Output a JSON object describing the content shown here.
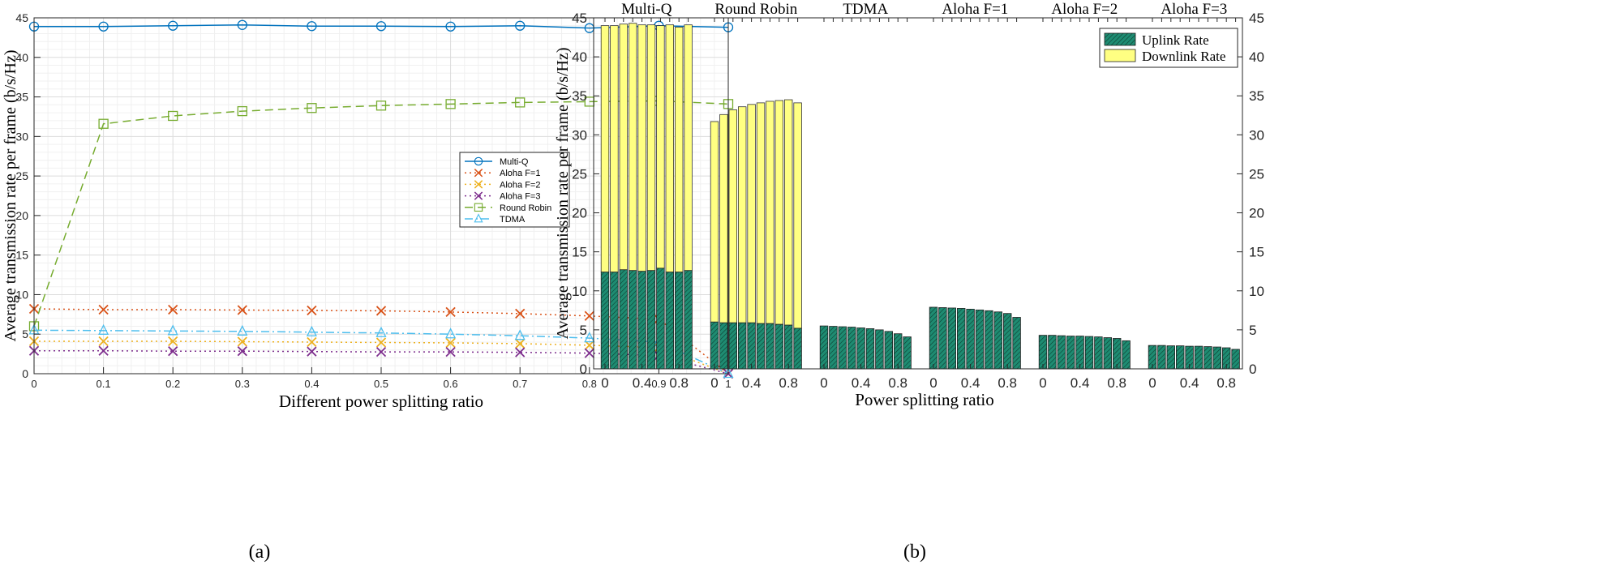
{
  "chart_data": [
    {
      "panel": "(a)",
      "type": "line",
      "title": "",
      "xlabel": "Different power splitting ratio",
      "ylabel": "Average transmission rate per frame (b/s/Hz)",
      "xlim": [
        0,
        1
      ],
      "ylim": [
        0,
        45
      ],
      "grid": true,
      "legend_position": "center-right",
      "x": [
        0,
        0.1,
        0.2,
        0.3,
        0.4,
        0.5,
        0.6,
        0.7,
        0.8,
        0.9,
        1
      ],
      "xtick_labels": [
        "0",
        "0.1",
        "0.2",
        "0.3",
        "0.4",
        "0.5",
        "0.6",
        "0.7",
        "0.8",
        "0.9",
        "1"
      ],
      "ytick_labels": [
        "0",
        "5",
        "10",
        "15",
        "20",
        "25",
        "30",
        "35",
        "40",
        "45"
      ],
      "series": [
        {
          "name": "Multi-Q",
          "color": "#0072BD",
          "marker": "circle",
          "dash": "solid",
          "values": [
            43.9,
            43.9,
            44.0,
            44.1,
            43.95,
            43.95,
            43.9,
            44.0,
            43.7,
            44.0,
            43.8
          ]
        },
        {
          "name": "Aloha F=1",
          "color": "#D95319",
          "marker": "x",
          "dash": "dot",
          "values": [
            8.2,
            8.1,
            8.1,
            8.05,
            8.0,
            7.95,
            7.8,
            7.6,
            7.3,
            6.9,
            0
          ]
        },
        {
          "name": "Aloha F=2",
          "color": "#EDB120",
          "marker": "x",
          "dash": "dot",
          "values": [
            4.1,
            4.1,
            4.1,
            4.05,
            4.0,
            3.95,
            3.9,
            3.8,
            3.6,
            3.3,
            0
          ]
        },
        {
          "name": "Aloha F=3",
          "color": "#7E2F8E",
          "marker": "x",
          "dash": "dot",
          "values": [
            2.9,
            2.9,
            2.85,
            2.85,
            2.8,
            2.75,
            2.75,
            2.7,
            2.6,
            2.3,
            0
          ]
        },
        {
          "name": "Round Robin",
          "color": "#77AC30",
          "marker": "square",
          "dash": "dash",
          "values": [
            6.0,
            31.6,
            32.6,
            33.2,
            33.6,
            33.9,
            34.1,
            34.3,
            34.4,
            34.5,
            34.1
          ]
        },
        {
          "name": "TDMA",
          "color": "#4DBEEE",
          "marker": "triangle",
          "dash": "dashdot",
          "values": [
            5.5,
            5.45,
            5.4,
            5.35,
            5.25,
            5.15,
            5.0,
            4.8,
            4.5,
            4.0,
            0
          ]
        }
      ]
    },
    {
      "panel": "(b)",
      "type": "bar",
      "stacked": true,
      "xlabel": "Power splitting ratio",
      "ylabel": "Average transmission rate per frame (b/s/Hz)",
      "ylim": [
        0,
        45
      ],
      "legend_position": "top-right",
      "ytick_labels": [
        "0",
        "5",
        "10",
        "15",
        "20",
        "25",
        "30",
        "35",
        "40",
        "45"
      ],
      "xtick_labels": [
        "0",
        "0.4",
        "0.8"
      ],
      "ratios": [
        0,
        0.1,
        0.2,
        0.3,
        0.4,
        0.5,
        0.6,
        0.7,
        0.8,
        0.9
      ],
      "legend": [
        {
          "name": "Uplink Rate",
          "color": "#1E8C72",
          "hatched": true
        },
        {
          "name": "Downlink Rate",
          "color": "#FFFF82",
          "hatched": false
        }
      ],
      "groups": [
        {
          "name": "Multi-Q",
          "uplink": [
            12.4,
            12.4,
            12.7,
            12.6,
            12.5,
            12.6,
            12.9,
            12.4,
            12.4,
            12.6
          ],
          "total": [
            44.0,
            44.0,
            44.2,
            44.3,
            44.1,
            44.1,
            44.0,
            44.1,
            43.8,
            44.1
          ]
        },
        {
          "name": "Round Robin",
          "uplink": [
            6.0,
            5.9,
            5.9,
            5.9,
            5.9,
            5.8,
            5.8,
            5.7,
            5.6,
            5.2
          ],
          "total": [
            31.7,
            32.6,
            33.2,
            33.6,
            33.9,
            34.1,
            34.3,
            34.4,
            34.5,
            34.1
          ]
        },
        {
          "name": "TDMA",
          "uplink": [
            5.5,
            5.45,
            5.4,
            5.35,
            5.25,
            5.15,
            5.0,
            4.8,
            4.5,
            4.1
          ],
          "total": [
            5.5,
            5.45,
            5.4,
            5.35,
            5.25,
            5.15,
            5.0,
            4.8,
            4.5,
            4.1
          ]
        },
        {
          "name": "Aloha F=1",
          "uplink": [
            7.9,
            7.85,
            7.8,
            7.75,
            7.65,
            7.55,
            7.45,
            7.3,
            7.1,
            6.6
          ],
          "total": [
            7.9,
            7.85,
            7.8,
            7.75,
            7.65,
            7.55,
            7.45,
            7.3,
            7.1,
            6.6
          ]
        },
        {
          "name": "Aloha F=2",
          "uplink": [
            4.3,
            4.3,
            4.25,
            4.2,
            4.2,
            4.15,
            4.1,
            4.0,
            3.9,
            3.6
          ],
          "total": [
            4.3,
            4.3,
            4.25,
            4.2,
            4.2,
            4.15,
            4.1,
            4.0,
            3.9,
            3.6
          ]
        },
        {
          "name": "Aloha F=3",
          "uplink": [
            3.0,
            3.0,
            2.95,
            2.95,
            2.9,
            2.9,
            2.85,
            2.8,
            2.7,
            2.5
          ],
          "total": [
            3.0,
            3.0,
            2.95,
            2.95,
            2.9,
            2.9,
            2.85,
            2.8,
            2.7,
            2.5
          ]
        }
      ]
    }
  ],
  "captions": {
    "a": "(a)",
    "b": "(b)"
  }
}
